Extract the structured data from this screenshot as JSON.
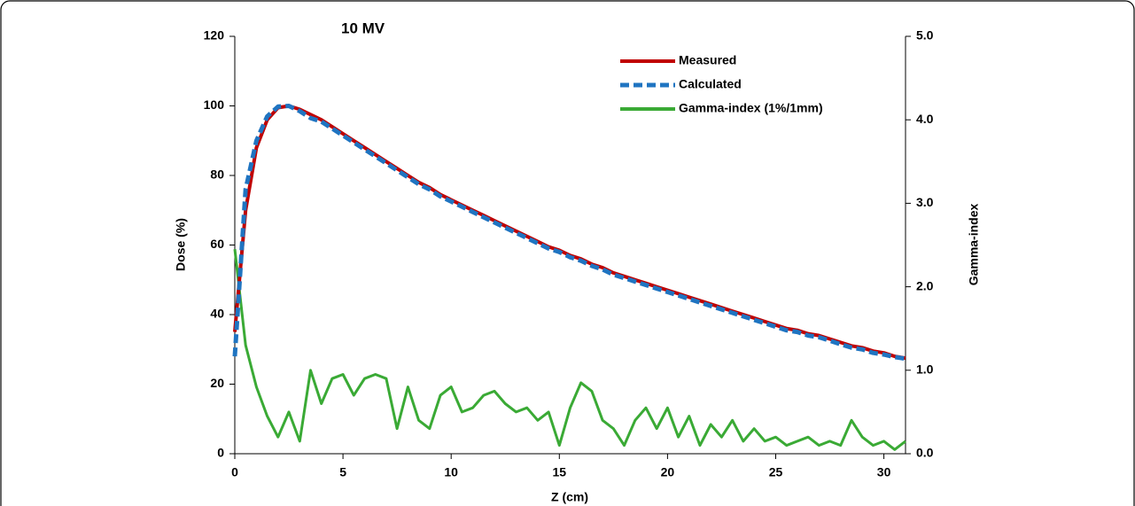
{
  "chart_data": {
    "type": "line",
    "annotation": "10 MV",
    "x_label": "Z (cm)",
    "y_label": "Dose (%)",
    "y2_label": "Gamma-index",
    "x": [
      0,
      0.5,
      1,
      1.5,
      2,
      2.5,
      3,
      3.5,
      4,
      4.5,
      5,
      5.5,
      6,
      6.5,
      7,
      7.5,
      8,
      8.5,
      9,
      9.5,
      10,
      10.5,
      11,
      11.5,
      12,
      12.5,
      13,
      13.5,
      14,
      14.5,
      15,
      15.5,
      16,
      16.5,
      17,
      17.5,
      18,
      18.5,
      19,
      19.5,
      20,
      20.5,
      21,
      21.5,
      22,
      22.5,
      23,
      23.5,
      24,
      24.5,
      25,
      25.5,
      26,
      26.5,
      27,
      27.5,
      28,
      28.5,
      29,
      29.5,
      30,
      30.5,
      31
    ],
    "series": [
      {
        "name": "Measured",
        "color": "#c00000",
        "dash": false,
        "values": [
          35,
          70,
          88,
          96,
          99.5,
          100,
          99,
          97.5,
          96,
          94,
          92,
          90,
          88,
          86,
          84,
          82,
          80,
          78,
          76.5,
          74.5,
          73,
          71.5,
          70,
          68.5,
          67,
          65.5,
          64,
          62.5,
          61,
          59.5,
          58.5,
          57,
          56,
          54.5,
          53.5,
          52,
          51,
          50,
          49,
          48,
          47,
          46,
          45,
          44,
          43,
          42,
          41,
          40,
          39,
          38,
          37,
          36,
          35.5,
          34.5,
          34,
          33,
          32,
          31,
          30.5,
          29.5,
          29,
          28,
          27.5
        ]
      },
      {
        "name": "Calculated",
        "color": "#1f74c1",
        "dash": true,
        "values": [
          28,
          76,
          90,
          97,
          99.8,
          100,
          98.5,
          96.5,
          95.5,
          93.5,
          91.5,
          89.5,
          87.5,
          85.5,
          83.5,
          81.5,
          79.5,
          77.5,
          76,
          74,
          72.5,
          71,
          69.5,
          68,
          66.5,
          65,
          63.5,
          62,
          60.5,
          59,
          58,
          56.5,
          55.5,
          54,
          53,
          51.5,
          50.5,
          49.5,
          48.5,
          47.5,
          46.5,
          45.5,
          44.5,
          43.5,
          42.5,
          41.5,
          40.5,
          39.5,
          38.5,
          37.5,
          36.5,
          35.5,
          35,
          34,
          33.5,
          32.5,
          31.5,
          30.5,
          30,
          29,
          28.5,
          27.8,
          27.3
        ]
      },
      {
        "name": "Gamma-index (1%/1mm)",
        "color": "#3aaa35",
        "dash": false,
        "axis": "y2",
        "values": [
          2.45,
          1.3,
          0.8,
          0.45,
          0.2,
          0.5,
          0.15,
          1.0,
          0.6,
          0.9,
          0.95,
          0.7,
          0.9,
          0.95,
          0.9,
          0.3,
          0.8,
          0.4,
          0.3,
          0.7,
          0.8,
          0.5,
          0.55,
          0.7,
          0.75,
          0.6,
          0.5,
          0.55,
          0.4,
          0.5,
          0.1,
          0.55,
          0.85,
          0.75,
          0.4,
          0.3,
          0.1,
          0.4,
          0.55,
          0.3,
          0.55,
          0.2,
          0.45,
          0.1,
          0.35,
          0.2,
          0.4,
          0.15,
          0.3,
          0.15,
          0.2,
          0.1,
          0.15,
          0.2,
          0.1,
          0.15,
          0.1,
          0.4,
          0.2,
          0.1,
          0.15,
          0.05,
          0.15
        ]
      }
    ],
    "xlim": [
      0,
      31
    ],
    "xticks": [
      0,
      5,
      10,
      15,
      20,
      25,
      30
    ],
    "ylim": [
      0,
      120
    ],
    "yticks": [
      0,
      20,
      40,
      60,
      80,
      100,
      120
    ],
    "y2lim": [
      0,
      5
    ],
    "y2ticks": [
      {
        "value": 0,
        "label": "0.0"
      },
      {
        "value": 1,
        "label": "1.0"
      },
      {
        "value": 2,
        "label": "2.0"
      },
      {
        "value": 3,
        "label": "3.0"
      },
      {
        "value": 4,
        "label": "4.0"
      },
      {
        "value": 5,
        "label": "5.0"
      }
    ],
    "legend": "top-right"
  }
}
